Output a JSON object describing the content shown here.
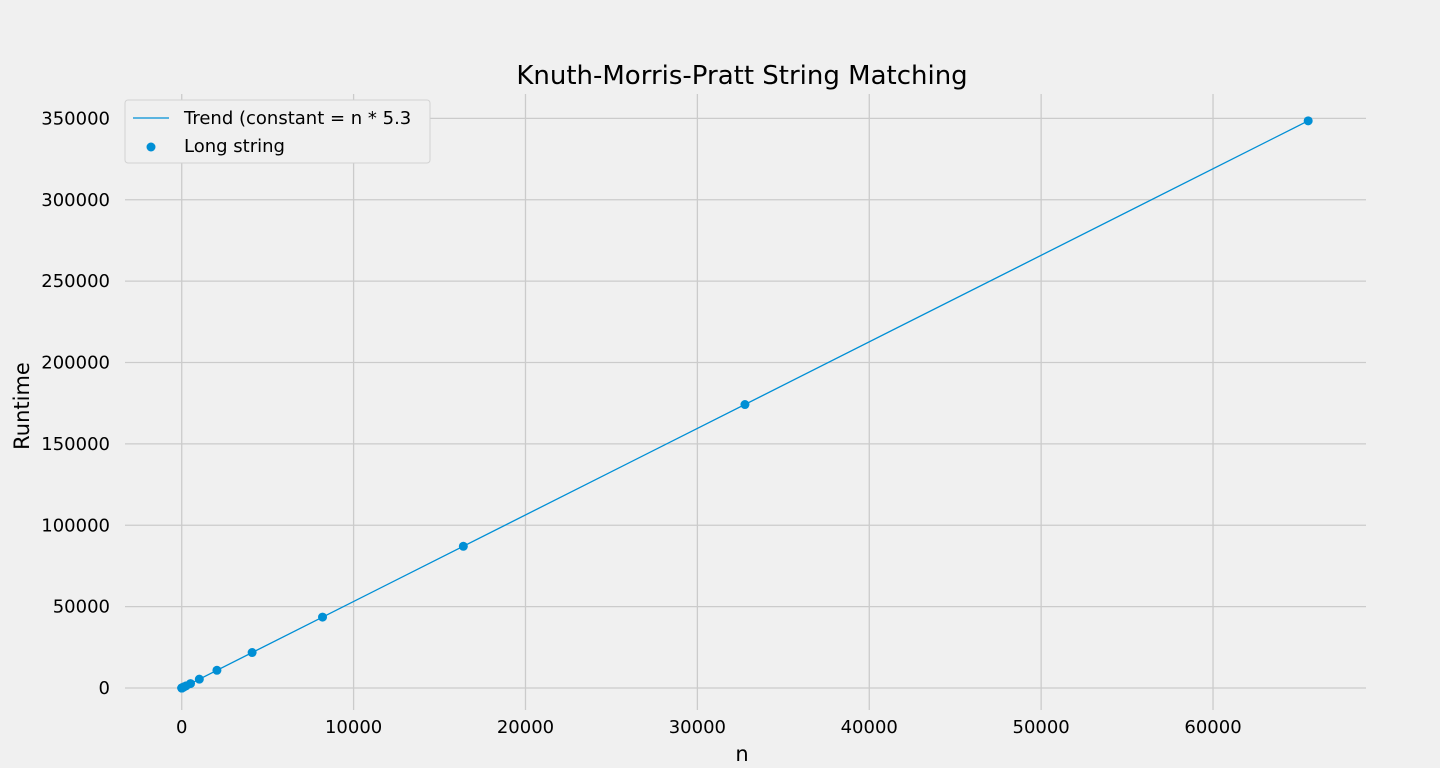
{
  "chart_data": {
    "type": "scatter",
    "title": "Knuth-Morris-Pratt String Matching",
    "xlabel": "n",
    "ylabel": "Runtime",
    "xlim": [
      -3300,
      68900
    ],
    "ylim": [
      -13500,
      365000
    ],
    "x_ticks": [
      0,
      10000,
      20000,
      30000,
      40000,
      50000,
      60000
    ],
    "y_ticks": [
      0,
      50000,
      100000,
      150000,
      200000,
      250000,
      300000,
      350000
    ],
    "grid": true,
    "legend_position": "top-left",
    "colors": {
      "series": "#008fd5",
      "background": "#f0f0f0",
      "grid": "#cbcbcb",
      "text": "#000000"
    },
    "series": [
      {
        "name": "Trend (constant = n * 5.3",
        "kind": "line",
        "x": [
          0,
          65536
        ],
        "y": [
          0,
          348500
        ]
      },
      {
        "name": "Long string",
        "kind": "scatter",
        "x": [
          1,
          2,
          4,
          8,
          16,
          32,
          64,
          128,
          256,
          512,
          1024,
          2048,
          4096,
          8192,
          16384,
          32768,
          65536
        ],
        "y": [
          5,
          11,
          21,
          43,
          85,
          170,
          340,
          680,
          1360,
          2720,
          5450,
          10900,
          21800,
          43600,
          87100,
          174200,
          348500
        ]
      }
    ]
  }
}
